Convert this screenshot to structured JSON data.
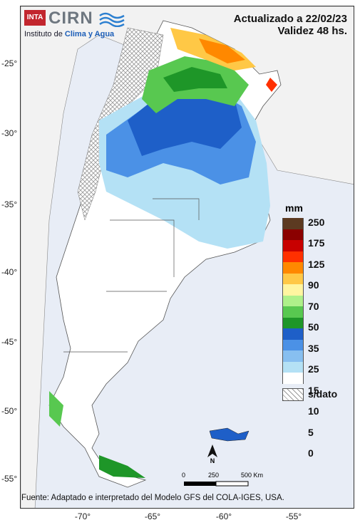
{
  "header": {
    "updated": "Actualizado a 22/02/23",
    "validity": "Validez 48 hs."
  },
  "logo": {
    "badge": "INTA",
    "name": "CIRN",
    "subtitle_prefix": "Instituto de ",
    "subtitle_accent": "Clima y Agua"
  },
  "axes": {
    "lat_ticks": [
      "-25°",
      "-30°",
      "-35°",
      "-40°",
      "-45°",
      "-50°",
      "-55°"
    ],
    "lon_ticks": [
      "-70°",
      "-65°",
      "-60°",
      "-55°"
    ]
  },
  "legend": {
    "title": "mm",
    "classes": [
      {
        "label": "250",
        "color": "#5c3a21"
      },
      {
        "label": "175",
        "color": "#8b0000"
      },
      {
        "label": "125",
        "color": "#c80000"
      },
      {
        "label": "90",
        "color": "#ff3000"
      },
      {
        "label": "70",
        "color": "#ff8800"
      },
      {
        "label": "50",
        "color": "#ffc846"
      },
      {
        "label": "35",
        "color": "#fff5a0"
      },
      {
        "label": "25",
        "color": "#aef08a"
      },
      {
        "label": "15",
        "color": "#58c850"
      },
      {
        "label": "10",
        "color": "#1e9628"
      },
      {
        "label": "5",
        "color": "#1e5fc8"
      },
      {
        "label": "0",
        "color": "#4b91e6"
      },
      {
        "label": "",
        "color": "#87bff0"
      },
      {
        "label": "",
        "color": "#b4e1f5"
      },
      {
        "label": "",
        "color": "#ffffff"
      }
    ],
    "no_data_label": "s/dato"
  },
  "scale": {
    "labels": [
      "0",
      "250",
      "500 Km"
    ],
    "north": "N"
  },
  "footer": "Fuente: Adaptado e interpretado del Modelo GFS del COLA-IGES, USA.",
  "colors": {
    "ocean": "#e8edf6",
    "land_outside": "#f2f2f2",
    "argentina_dry": "#ffffff"
  }
}
